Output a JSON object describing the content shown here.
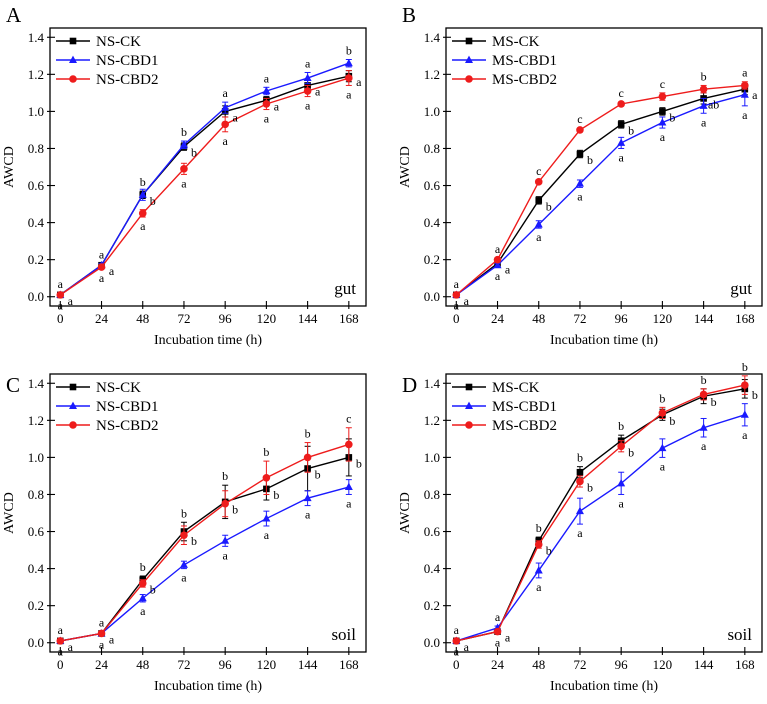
{
  "chart_data": [
    {
      "type": "line",
      "panel": "A",
      "sample": "gut",
      "xlabel": "Incubation time (h)",
      "ylabel": "AWCD",
      "x": [
        0,
        24,
        48,
        72,
        96,
        120,
        144,
        168
      ],
      "xticks": [
        "0",
        "24",
        "48",
        "72",
        "96",
        "120",
        "144",
        "168"
      ],
      "ylim": [
        -0.05,
        1.45
      ],
      "yticks": [
        "0.0",
        "0.2",
        "0.4",
        "0.6",
        "0.8",
        "1.0",
        "1.2",
        "1.4"
      ],
      "legend_position": "top-left",
      "series": [
        {
          "name": "NS-CK",
          "color": "#000000",
          "marker": "square",
          "values": [
            0.01,
            0.17,
            0.55,
            0.81,
            1.0,
            1.06,
            1.14,
            1.19
          ],
          "errors": [
            0.01,
            0.01,
            0.02,
            0.02,
            0.03,
            0.02,
            0.03,
            0.03
          ],
          "labels": [
            "a",
            "a",
            "b",
            "b",
            "a",
            "a",
            "a",
            "a"
          ]
        },
        {
          "name": "NS-CBD1",
          "color": "#1a1aff",
          "marker": "triangle",
          "values": [
            0.01,
            0.17,
            0.55,
            0.82,
            1.02,
            1.11,
            1.18,
            1.26
          ],
          "errors": [
            0.01,
            0.01,
            0.03,
            0.02,
            0.03,
            0.02,
            0.03,
            0.02
          ],
          "labels": [
            "a",
            "a",
            "b",
            "b",
            "a",
            "a",
            "a",
            "b"
          ]
        },
        {
          "name": "NS-CBD2",
          "color": "#ee1c1c",
          "marker": "circle",
          "values": [
            0.01,
            0.16,
            0.45,
            0.69,
            0.93,
            1.04,
            1.11,
            1.18
          ],
          "errors": [
            0.01,
            0.01,
            0.02,
            0.03,
            0.04,
            0.03,
            0.03,
            0.04
          ],
          "labels": [
            "a",
            "a",
            "a",
            "a",
            "a",
            "a",
            "a",
            "a"
          ]
        }
      ]
    },
    {
      "type": "line",
      "panel": "B",
      "sample": "gut",
      "xlabel": "Incubation time (h)",
      "ylabel": "AWCD",
      "x": [
        0,
        24,
        48,
        72,
        96,
        120,
        144,
        168
      ],
      "xticks": [
        "0",
        "24",
        "48",
        "72",
        "96",
        "120",
        "144",
        "168"
      ],
      "ylim": [
        -0.05,
        1.45
      ],
      "yticks": [
        "0.0",
        "0.2",
        "0.4",
        "0.6",
        "0.8",
        "1.0",
        "1.2",
        "1.4"
      ],
      "legend_position": "top-left",
      "series": [
        {
          "name": "MS-CK",
          "color": "#000000",
          "marker": "square",
          "values": [
            0.01,
            0.18,
            0.52,
            0.77,
            0.93,
            1.0,
            1.07,
            1.12
          ],
          "errors": [
            0.01,
            0.01,
            0.02,
            0.02,
            0.02,
            0.02,
            0.03,
            0.03
          ],
          "labels": [
            "a",
            "a",
            "b",
            "b",
            "b",
            "b",
            "ab",
            "a"
          ]
        },
        {
          "name": "MS-CBD1",
          "color": "#1a1aff",
          "marker": "triangle",
          "values": [
            0.01,
            0.17,
            0.39,
            0.61,
            0.83,
            0.94,
            1.03,
            1.09
          ],
          "errors": [
            0.01,
            0.01,
            0.02,
            0.02,
            0.03,
            0.03,
            0.04,
            0.06
          ],
          "labels": [
            "a",
            "a",
            "a",
            "a",
            "a",
            "a",
            "a",
            "a"
          ]
        },
        {
          "name": "MS-CBD2",
          "color": "#ee1c1c",
          "marker": "circle",
          "values": [
            0.01,
            0.2,
            0.62,
            0.9,
            1.04,
            1.08,
            1.12,
            1.14
          ],
          "errors": [
            0.01,
            0.01,
            0.01,
            0.01,
            0.01,
            0.02,
            0.02,
            0.02
          ],
          "labels": [
            "a",
            "a",
            "c",
            "c",
            "c",
            "c",
            "b",
            "a"
          ]
        }
      ]
    },
    {
      "type": "line",
      "panel": "C",
      "sample": "soil",
      "xlabel": "Incubation time (h)",
      "ylabel": "AWCD",
      "x": [
        0,
        24,
        48,
        72,
        96,
        120,
        144,
        168
      ],
      "xticks": [
        "0",
        "24",
        "48",
        "72",
        "96",
        "120",
        "144",
        "168"
      ],
      "ylim": [
        -0.05,
        1.45
      ],
      "yticks": [
        "0.0",
        "0.2",
        "0.4",
        "0.6",
        "0.8",
        "1.0",
        "1.2",
        "1.4"
      ],
      "legend_position": "top-left",
      "series": [
        {
          "name": "NS-CK",
          "color": "#000000",
          "marker": "square",
          "values": [
            0.01,
            0.05,
            0.34,
            0.6,
            0.76,
            0.83,
            0.94,
            1.0
          ],
          "errors": [
            0.01,
            0.01,
            0.02,
            0.05,
            0.09,
            0.06,
            0.12,
            0.1
          ],
          "labels": [
            "a",
            "a",
            "b",
            "b",
            "b",
            "b",
            "b",
            "b"
          ]
        },
        {
          "name": "NS-CBD1",
          "color": "#1a1aff",
          "marker": "triangle",
          "values": [
            0.01,
            0.05,
            0.24,
            0.42,
            0.55,
            0.67,
            0.78,
            0.84
          ],
          "errors": [
            0.01,
            0.01,
            0.02,
            0.02,
            0.03,
            0.04,
            0.04,
            0.04
          ],
          "labels": [
            "a",
            "a",
            "a",
            "a",
            "a",
            "a",
            "a",
            "a"
          ]
        },
        {
          "name": "NS-CBD2",
          "color": "#ee1c1c",
          "marker": "circle",
          "values": [
            0.01,
            0.05,
            0.32,
            0.58,
            0.75,
            0.89,
            1.0,
            1.07
          ],
          "errors": [
            0.01,
            0.01,
            0.02,
            0.05,
            0.07,
            0.09,
            0.08,
            0.09
          ],
          "labels": [
            "a",
            "a",
            "b",
            "b",
            "b",
            "b",
            "b",
            "c"
          ]
        }
      ]
    },
    {
      "type": "line",
      "panel": "D",
      "sample": "soil",
      "xlabel": "Incubation time (h)",
      "ylabel": "AWCD",
      "x": [
        0,
        24,
        48,
        72,
        96,
        120,
        144,
        168
      ],
      "xticks": [
        "0",
        "24",
        "48",
        "72",
        "96",
        "120",
        "144",
        "168"
      ],
      "ylim": [
        -0.05,
        1.45
      ],
      "yticks": [
        "0.0",
        "0.2",
        "0.4",
        "0.6",
        "0.8",
        "1.0",
        "1.2",
        "1.4"
      ],
      "legend_position": "top-left",
      "series": [
        {
          "name": "MS-CK",
          "color": "#000000",
          "marker": "square",
          "values": [
            0.01,
            0.06,
            0.55,
            0.92,
            1.09,
            1.23,
            1.33,
            1.37
          ],
          "errors": [
            0.01,
            0.01,
            0.02,
            0.03,
            0.03,
            0.03,
            0.04,
            0.05
          ],
          "labels": [
            "a",
            "a",
            "b",
            "b",
            "b",
            "b",
            "b",
            "b"
          ]
        },
        {
          "name": "MS-CBD1",
          "color": "#1a1aff",
          "marker": "triangle",
          "values": [
            0.01,
            0.08,
            0.39,
            0.71,
            0.86,
            1.05,
            1.16,
            1.23
          ],
          "errors": [
            0.01,
            0.01,
            0.04,
            0.07,
            0.06,
            0.05,
            0.05,
            0.06
          ],
          "labels": [
            "a",
            "a",
            "a",
            "a",
            "a",
            "a",
            "a",
            "a"
          ]
        },
        {
          "name": "MS-CBD2",
          "color": "#ee1c1c",
          "marker": "circle",
          "values": [
            0.01,
            0.06,
            0.53,
            0.87,
            1.06,
            1.24,
            1.34,
            1.39
          ],
          "errors": [
            0.01,
            0.01,
            0.02,
            0.03,
            0.03,
            0.03,
            0.03,
            0.05
          ],
          "labels": [
            "a",
            "a",
            "b",
            "b",
            "b",
            "b",
            "b",
            "b"
          ]
        }
      ]
    }
  ]
}
